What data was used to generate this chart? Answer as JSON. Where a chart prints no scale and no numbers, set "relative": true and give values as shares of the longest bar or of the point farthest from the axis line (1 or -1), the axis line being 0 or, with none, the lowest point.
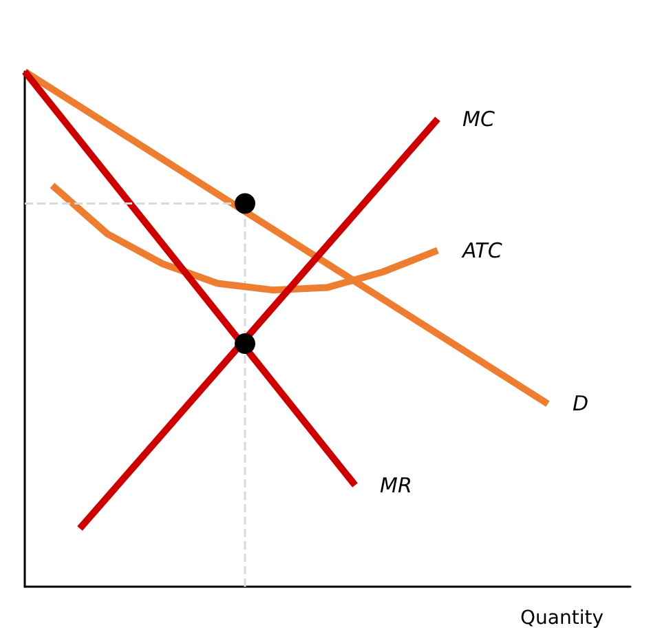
{
  "chart_data": {
    "type": "line",
    "relative": true,
    "xlabel": "Quantity",
    "tick_labels": false,
    "marker": "none",
    "categories": [
      null,
      null,
      null,
      null,
      null,
      null,
      null,
      null,
      null,
      null,
      null,
      null,
      null,
      null,
      null,
      null,
      null,
      null,
      null,
      null,
      null,
      null,
      null
    ],
    "series": [
      {
        "name": "D",
        "color": "#ed7d31",
        "values": [
          1,
          null,
          null,
          null,
          null,
          null,
          null,
          null,
          null,
          null,
          null,
          null,
          null,
          null,
          null,
          null,
          null,
          null,
          null,
          0.355,
          null,
          null,
          null
        ]
      },
      {
        "name": "ATC",
        "color": "#ed7d31",
        "values": [
          null,
          0.779,
          null,
          0.685,
          null,
          0.627,
          null,
          0.589,
          null,
          0.576,
          null,
          0.581,
          null,
          0.611,
          null,
          0.653,
          null,
          null,
          null,
          null,
          null,
          null,
          null
        ]
      },
      {
        "name": "MR",
        "color": "#cc0000",
        "values": [
          1,
          null,
          null,
          null,
          null,
          null,
          null,
          null,
          null,
          null,
          null,
          null,
          0.197,
          null,
          null,
          null,
          null,
          null,
          null,
          null,
          null,
          null,
          null
        ]
      },
      {
        "name": "MC",
        "color": "#cc0000",
        "values": [
          null,
          null,
          0.113,
          null,
          null,
          null,
          null,
          null,
          null,
          null,
          null,
          null,
          null,
          null,
          null,
          0.908,
          null,
          null,
          null,
          null,
          null,
          null,
          null
        ]
      },
      {
        "color": "#d9d9d9",
        "line_style": "dashed",
        "values": [
          0.744,
          null,
          null,
          null,
          null,
          null,
          null,
          null,
          0.744,
          null,
          null,
          null,
          null,
          null,
          null,
          null,
          null,
          null,
          null,
          null,
          null,
          null,
          null
        ]
      },
      {
        "marker": "circle",
        "color": "#000000",
        "line_style": "dashed",
        "values": [
          null,
          null,
          null,
          null,
          null,
          null,
          null,
          null,
          0.744,
          null,
          null,
          null,
          null,
          null,
          null,
          null,
          null,
          null,
          null,
          null,
          null,
          null,
          null
        ]
      },
      {
        "marker": "circle",
        "color": "#000000",
        "values": [
          null,
          null,
          null,
          null,
          null,
          null,
          null,
          null,
          0.472,
          null,
          null,
          null,
          null,
          null,
          null,
          null,
          null,
          null,
          null,
          null,
          null,
          null,
          null
        ]
      }
    ]
  }
}
